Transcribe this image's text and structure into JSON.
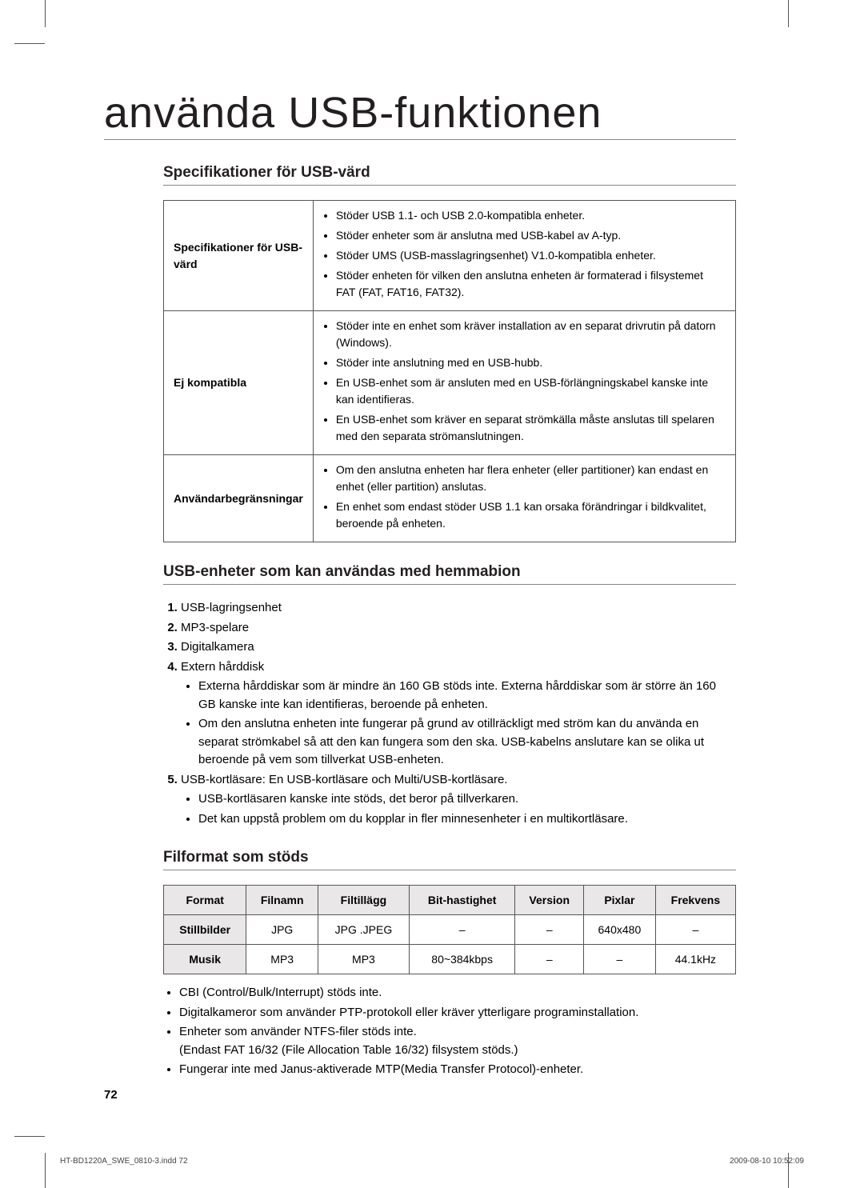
{
  "page_title": "använda USB-funktionen",
  "page_number": "72",
  "footer": {
    "file": "HT-BD1220A_SWE_0810-3.indd   72",
    "date": "2009-08-10   10:52:09"
  },
  "s1": {
    "heading": "Specifikationer för USB-värd",
    "rows": [
      {
        "label": "Specifikationer för USB-värd",
        "items": [
          "Stöder USB 1.1- och USB 2.0-kompatibla enheter.",
          "Stöder enheter som är anslutna med USB-kabel av A-typ.",
          "Stöder UMS (USB-masslagringsenhet) V1.0-kompatibla enheter.",
          "Stöder enheten för vilken den anslutna enheten är formaterad i filsystemet FAT (FAT, FAT16, FAT32)."
        ]
      },
      {
        "label": "Ej kompatibla",
        "items": [
          "Stöder inte en enhet som kräver installation av en separat drivrutin på datorn (Windows).",
          "Stöder inte anslutning med en USB-hubb.",
          "En USB-enhet som är ansluten med en USB-förlängningskabel kanske inte kan identifieras.",
          "En USB-enhet som kräver en separat strömkälla måste anslutas till spelaren med den separata strömanslutningen."
        ]
      },
      {
        "label": "Användarbegränsningar",
        "items": [
          "Om den anslutna enheten har flera enheter (eller partitioner) kan endast en enhet (eller partition) anslutas.",
          "En enhet som endast stöder USB 1.1 kan orsaka förändringar i bildkvalitet, beroende på enheten."
        ]
      }
    ]
  },
  "s2": {
    "heading": "USB-enheter som kan användas med hemmabion",
    "i1": "USB-lagringsenhet",
    "i2": "MP3-spelare",
    "i3": "Digitalkamera",
    "i4": "Extern hårddisk",
    "i4a": "Externa hårddiskar som är mindre än 160 GB stöds inte. Externa hårddiskar som är större än 160 GB kanske inte kan identifieras, beroende på enheten.",
    "i4b": "Om den anslutna enheten inte fungerar på grund av otillräckligt med ström kan du använda en separat strömkabel så att den kan fungera som den ska. USB-kabelns anslutare kan se olika ut beroende på vem som tillverkat USB-enheten.",
    "i5": "USB-kortläsare: En USB-kortläsare och Multi/USB-kortläsare.",
    "i5a": "USB-kortläsaren kanske inte stöds, det beror på tillverkaren.",
    "i5b": "Det kan uppstå problem om du kopplar in fler minnesenheter i en multikortläsare."
  },
  "s3": {
    "heading": "Filformat som stöds",
    "headers": [
      "Format",
      "Filnamn",
      "Filtillägg",
      "Bit-hastighet",
      "Version",
      "Pixlar",
      "Frekvens"
    ],
    "rows": [
      [
        "Stillbilder",
        "JPG",
        "JPG .JPEG",
        "–",
        "–",
        "640x480",
        "–"
      ],
      [
        "Musik",
        "MP3",
        "MP3",
        "80~384kbps",
        "–",
        "–",
        "44.1kHz"
      ]
    ],
    "notes": [
      "CBI (Control/Bulk/Interrupt) stöds inte.",
      "Digitalkameror som använder PTP-protokoll eller kräver ytterligare programinstallation.",
      "Enheter som använder NTFS-filer stöds inte.\n(Endast FAT 16/32 (File Allocation Table 16/32) filsystem stöds.)",
      "Fungerar inte med Janus-aktiverade MTP(Media Transfer Protocol)-enheter."
    ]
  }
}
